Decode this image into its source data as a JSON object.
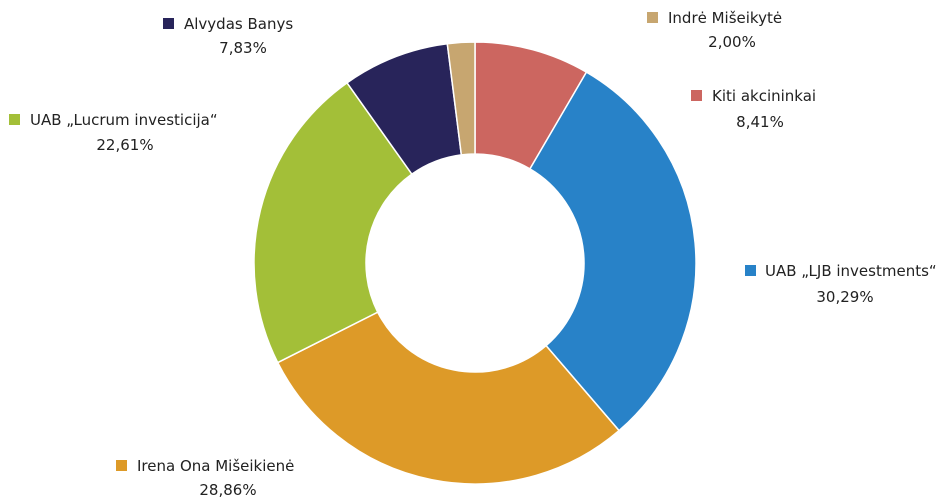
{
  "chart_data": {
    "type": "pie",
    "style": "donut",
    "slices": [
      {
        "label": "Kiti akcininkai",
        "value_text": "8,41%",
        "value": 8.41,
        "color": "#cc6660"
      },
      {
        "label": "UAB „LJB investments“",
        "value_text": "30,29%",
        "value": 30.29,
        "color": "#2882c8"
      },
      {
        "label": "Irena Ona Mišeikienė",
        "value_text": "28,86%",
        "value": 28.86,
        "color": "#dd9a28"
      },
      {
        "label": "UAB „Lucrum investicija“",
        "value_text": "22,61%",
        "value": 22.61,
        "color": "#a3bf38"
      },
      {
        "label": "Alvydas Banys",
        "value_text": "7,83%",
        "value": 7.83,
        "color": "#28245a"
      },
      {
        "label": "Indrė Mišeikytė",
        "value_text": "2,00%",
        "value": 2.0,
        "color": "#c7a670"
      }
    ]
  }
}
